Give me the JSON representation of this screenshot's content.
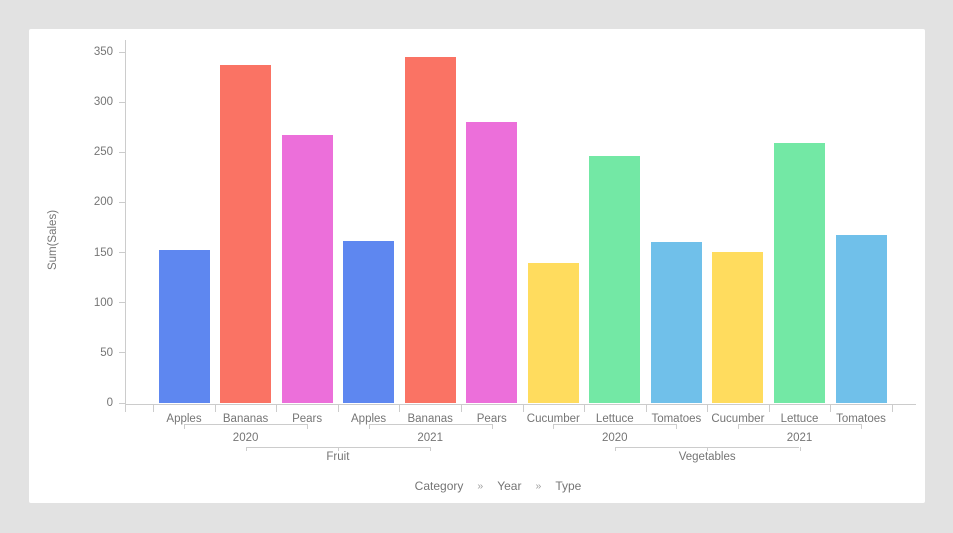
{
  "window": {
    "background_color": "#e2e2e2",
    "card_background_color": "#ffffff",
    "axis_line_color": "#cccccc",
    "axis_text_color": "#757575"
  },
  "chart_data": {
    "type": "bar",
    "title": "",
    "xlabel": "",
    "ylabel": "Sum(Sales)",
    "ylim": [
      0,
      350
    ],
    "yticks": [
      0,
      50,
      100,
      150,
      200,
      250,
      300,
      350
    ],
    "grid": false,
    "legend": "none",
    "hierarchy_levels": [
      "Category",
      "Year",
      "Type"
    ],
    "palette": {
      "Apples": "#5e87f0",
      "Bananas": "#fa7364",
      "Pears": "#ec6fda",
      "Cucumber": "#ffdc5e",
      "Lettuce": "#73e8a5",
      "Tomatoes": "#70c0ea"
    },
    "bars": [
      {
        "category": "Fruit",
        "year": "2020",
        "type": "Apples",
        "value": 153
      },
      {
        "category": "Fruit",
        "year": "2020",
        "type": "Bananas",
        "value": 337
      },
      {
        "category": "Fruit",
        "year": "2020",
        "type": "Pears",
        "value": 267
      },
      {
        "category": "Fruit",
        "year": "2021",
        "type": "Apples",
        "value": 162
      },
      {
        "category": "Fruit",
        "year": "2021",
        "type": "Bananas",
        "value": 345
      },
      {
        "category": "Fruit",
        "year": "2021",
        "type": "Pears",
        "value": 280
      },
      {
        "category": "Vegetables",
        "year": "2020",
        "type": "Cucumber",
        "value": 140
      },
      {
        "category": "Vegetables",
        "year": "2020",
        "type": "Lettuce",
        "value": 246
      },
      {
        "category": "Vegetables",
        "year": "2020",
        "type": "Tomatoes",
        "value": 161
      },
      {
        "category": "Vegetables",
        "year": "2021",
        "type": "Cucumber",
        "value": 151
      },
      {
        "category": "Vegetables",
        "year": "2021",
        "type": "Lettuce",
        "value": 259
      },
      {
        "category": "Vegetables",
        "year": "2021",
        "type": "Tomatoes",
        "value": 168
      }
    ]
  },
  "breadcrumb": {
    "items": [
      "Category",
      "Year",
      "Type"
    ],
    "separator": "»"
  }
}
